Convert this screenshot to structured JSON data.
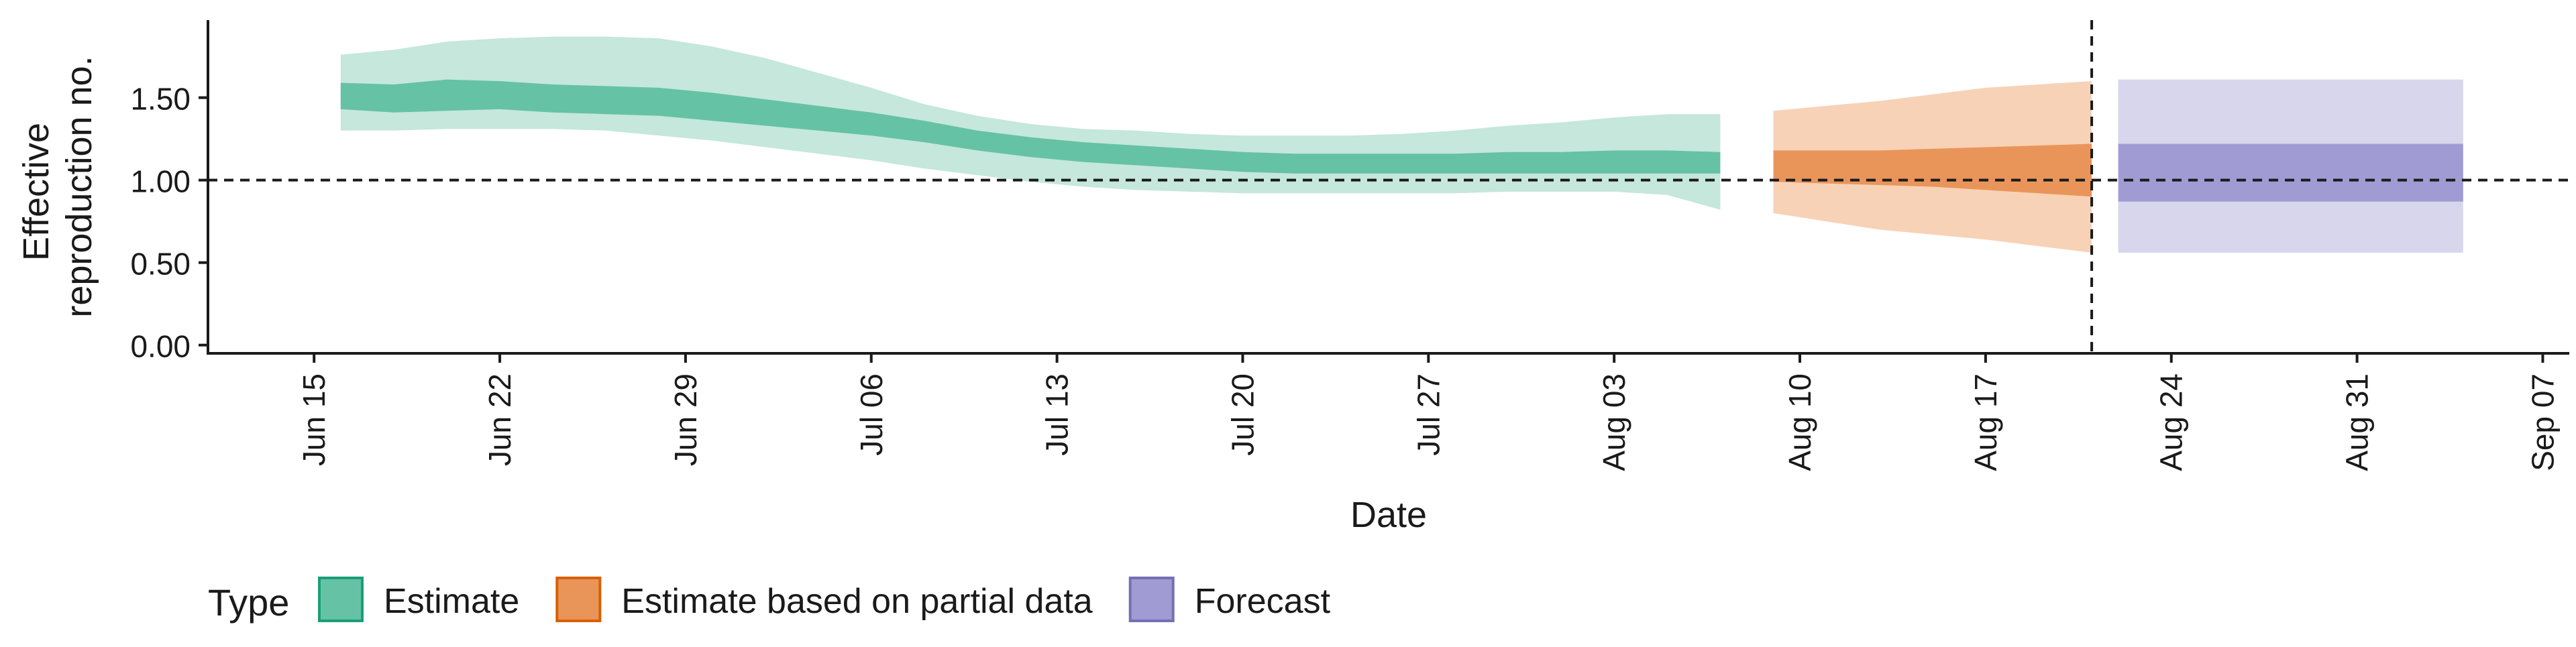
{
  "chart_data": {
    "type": "area",
    "xlabel": "Date",
    "ylabel": [
      "Effective",
      "reproduction no."
    ],
    "ylim": [
      -0.05,
      1.97
    ],
    "x_range": [
      "2021-06-11",
      "2021-09-08"
    ],
    "yticks": [
      0.0,
      0.5,
      1.0,
      1.5
    ],
    "ytick_labels": [
      "0.00",
      "0.50",
      "1.00",
      "1.50"
    ],
    "xticks": [
      {
        "date": "2021-06-15",
        "label": "Jun 15"
      },
      {
        "date": "2021-06-22",
        "label": "Jun 22"
      },
      {
        "date": "2021-06-29",
        "label": "Jun 29"
      },
      {
        "date": "2021-07-06",
        "label": "Jul 06"
      },
      {
        "date": "2021-07-13",
        "label": "Jul 13"
      },
      {
        "date": "2021-07-20",
        "label": "Jul 20"
      },
      {
        "date": "2021-07-27",
        "label": "Jul 27"
      },
      {
        "date": "2021-08-03",
        "label": "Aug 03"
      },
      {
        "date": "2021-08-10",
        "label": "Aug 10"
      },
      {
        "date": "2021-08-17",
        "label": "Aug 17"
      },
      {
        "date": "2021-08-24",
        "label": "Aug 24"
      },
      {
        "date": "2021-08-31",
        "label": "Aug 31"
      },
      {
        "date": "2021-09-07",
        "label": "Sep 07"
      }
    ],
    "reference_line": {
      "y": 1.0,
      "style": "dashed"
    },
    "vertical_line": {
      "date": "2021-08-21",
      "style": "dashed"
    },
    "grid": false,
    "legend": {
      "title": "Type",
      "position": "bottom-left",
      "items": [
        {
          "label": "Estimate",
          "fill": "#66c2a5",
          "stroke": "#1b9e77"
        },
        {
          "label": "Estimate based on partial data",
          "fill": "#e9955a",
          "stroke": "#d95f02"
        },
        {
          "label": "Forecast",
          "fill": "#a09bd3",
          "stroke": "#7570b3"
        }
      ]
    },
    "series": [
      {
        "name": "Estimate",
        "color_inner": "#66c2a5",
        "color_outer": "#c5e7dc",
        "x": [
          "2021-06-16",
          "2021-06-18",
          "2021-06-20",
          "2021-06-22",
          "2021-06-24",
          "2021-06-26",
          "2021-06-28",
          "2021-06-30",
          "2021-07-02",
          "2021-07-04",
          "2021-07-06",
          "2021-07-08",
          "2021-07-10",
          "2021-07-12",
          "2021-07-14",
          "2021-07-16",
          "2021-07-18",
          "2021-07-20",
          "2021-07-22",
          "2021-07-24",
          "2021-07-26",
          "2021-07-28",
          "2021-07-30",
          "2021-08-01",
          "2021-08-03",
          "2021-08-05",
          "2021-08-07"
        ],
        "lower_90": [
          1.3,
          1.3,
          1.31,
          1.31,
          1.31,
          1.3,
          1.27,
          1.24,
          1.2,
          1.16,
          1.12,
          1.07,
          1.03,
          0.99,
          0.96,
          0.94,
          0.93,
          0.92,
          0.92,
          0.92,
          0.92,
          0.92,
          0.93,
          0.93,
          0.93,
          0.91,
          0.82
        ],
        "lower_50": [
          1.43,
          1.41,
          1.42,
          1.43,
          1.41,
          1.4,
          1.39,
          1.36,
          1.33,
          1.3,
          1.27,
          1.23,
          1.18,
          1.14,
          1.11,
          1.09,
          1.07,
          1.05,
          1.04,
          1.04,
          1.04,
          1.04,
          1.04,
          1.04,
          1.04,
          1.04,
          1.04
        ],
        "upper_50": [
          1.59,
          1.58,
          1.61,
          1.6,
          1.58,
          1.57,
          1.56,
          1.53,
          1.49,
          1.45,
          1.41,
          1.36,
          1.3,
          1.26,
          1.23,
          1.21,
          1.19,
          1.17,
          1.16,
          1.16,
          1.16,
          1.16,
          1.17,
          1.17,
          1.18,
          1.18,
          1.17
        ],
        "upper_90": [
          1.76,
          1.79,
          1.84,
          1.86,
          1.87,
          1.87,
          1.86,
          1.81,
          1.74,
          1.65,
          1.56,
          1.46,
          1.39,
          1.34,
          1.31,
          1.3,
          1.28,
          1.27,
          1.27,
          1.27,
          1.28,
          1.3,
          1.33,
          1.35,
          1.38,
          1.4,
          1.4
        ]
      },
      {
        "name": "Estimate based on partial data",
        "color_inner": "#e9955a",
        "color_outer": "#f7d2b7",
        "x": [
          "2021-08-09",
          "2021-08-11",
          "2021-08-13",
          "2021-08-15",
          "2021-08-17",
          "2021-08-19",
          "2021-08-21"
        ],
        "lower_90": [
          0.8,
          0.75,
          0.7,
          0.67,
          0.64,
          0.6,
          0.56
        ],
        "lower_50": [
          0.99,
          0.98,
          0.97,
          0.96,
          0.94,
          0.92,
          0.9
        ],
        "upper_50": [
          1.18,
          1.18,
          1.18,
          1.19,
          1.2,
          1.21,
          1.22
        ],
        "upper_90": [
          1.42,
          1.45,
          1.48,
          1.52,
          1.56,
          1.58,
          1.6
        ]
      },
      {
        "name": "Forecast",
        "color_inner": "#a09bd3",
        "color_outer": "#d8d6ec",
        "x": [
          "2021-08-22",
          "2021-09-04"
        ],
        "lower_90": [
          0.56,
          0.56
        ],
        "lower_50": [
          0.87,
          0.87
        ],
        "upper_50": [
          1.22,
          1.22
        ],
        "upper_90": [
          1.61,
          1.61
        ]
      }
    ]
  }
}
